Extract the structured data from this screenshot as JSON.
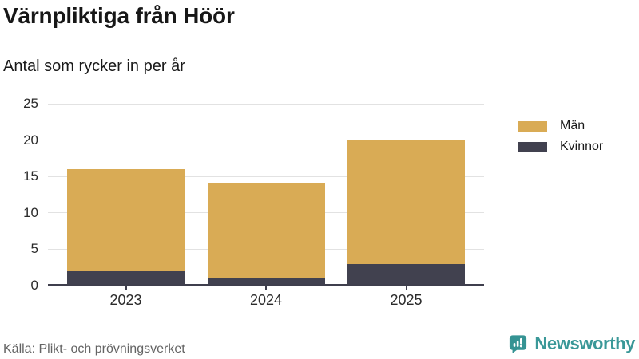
{
  "header": {
    "title": "Värnpliktiga från Höör",
    "subtitle": "Antal som rycker in per år"
  },
  "chart_data": {
    "type": "bar",
    "stacked": true,
    "title": "Värnpliktiga från Höör",
    "subtitle": "Antal som rycker in per år",
    "categories": [
      "2023",
      "2024",
      "2025"
    ],
    "series": [
      {
        "name": "Män",
        "color": "#d9ab55",
        "values": [
          14,
          13,
          17
        ]
      },
      {
        "name": "Kvinnor",
        "color": "#41414f",
        "values": [
          2,
          1,
          3
        ]
      }
    ],
    "stack_order_bottom_to_top": [
      "Kvinnor",
      "Män"
    ],
    "totals": [
      16,
      14,
      20
    ],
    "xlabel": "",
    "ylabel": "",
    "yticks": [
      0,
      5,
      10,
      15,
      20,
      25
    ],
    "ylim": [
      0,
      25
    ],
    "grid": true,
    "legend_position": "right"
  },
  "footer": {
    "source": "Källa: Plikt- och prövningsverket",
    "brand": "Newsworthy"
  },
  "colors": {
    "men": "#d9ab55",
    "women": "#41414f",
    "grid": "#e2e2e2",
    "axis": "#3f3f4d",
    "brand_teal": "#3a9898",
    "muted_text": "#646464"
  }
}
